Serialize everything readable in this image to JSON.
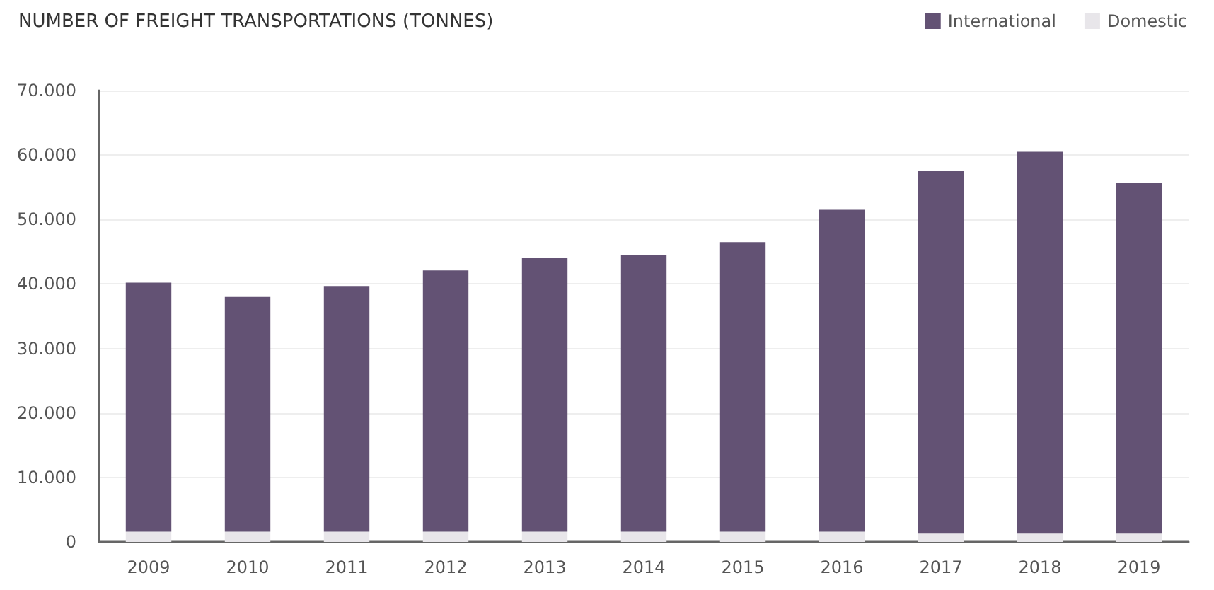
{
  "chart_data": {
    "type": "bar",
    "title": "NUMBER OF FREIGHT TRANSPORTATIONS (TONNES)",
    "stacked": true,
    "grid": "y",
    "legend": "top right",
    "categories": [
      "2009",
      "2010",
      "2011",
      "2012",
      "2013",
      "2014",
      "2015",
      "2016",
      "2017",
      "2018",
      "2019"
    ],
    "series": [
      {
        "name": "Domestic",
        "color": "#e8e6ea",
        "values": [
          1600,
          1600,
          1600,
          1600,
          1600,
          1600,
          1600,
          1600,
          1300,
          1300,
          1300
        ]
      },
      {
        "name": "International",
        "color": "#635274",
        "values": [
          38600,
          36400,
          38100,
          40500,
          42400,
          42900,
          44900,
          49900,
          56200,
          59200,
          54400
        ]
      }
    ],
    "ylim": [
      0,
      70000
    ],
    "yticks": [
      {
        "value": 0,
        "label": "0"
      },
      {
        "value": 10000,
        "label": "10.000"
      },
      {
        "value": 20000,
        "label": "20.000"
      },
      {
        "value": 30000,
        "label": "30.000"
      },
      {
        "value": 40000,
        "label": "40.000"
      },
      {
        "value": 50000,
        "label": "50.000"
      },
      {
        "value": 60000,
        "label": "60.000"
      },
      {
        "value": 70000,
        "label": "70.000"
      }
    ]
  }
}
